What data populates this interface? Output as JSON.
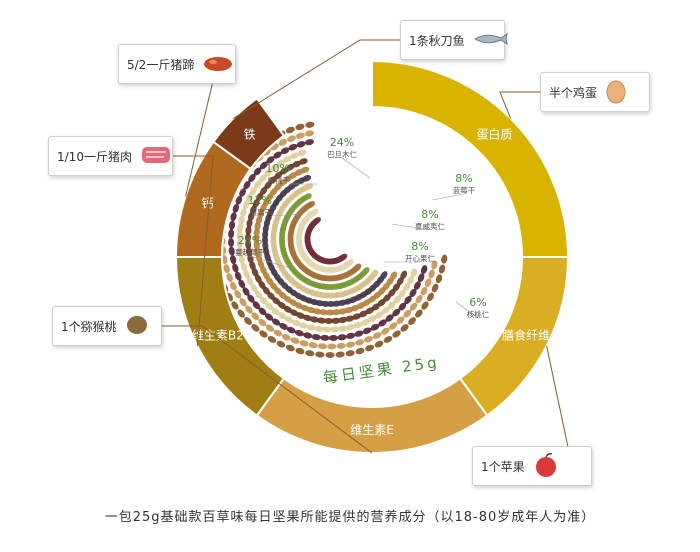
{
  "chart_data": {
    "type": "donut",
    "caption": "一包25g基础款百草味每日坚果所能提供的营养成分（以18-80岁成年人为准）",
    "center_text": "每日坚果 25g",
    "segments": [
      {
        "label": "蛋白质",
        "share": 0.25,
        "color": "#d8b400",
        "callout": "半个鸡蛋",
        "icon": "egg-icon"
      },
      {
        "label": "膳食纤维",
        "share": 0.15,
        "color": "#d9ae22",
        "callout": "1个苹果",
        "icon": "apple-icon"
      },
      {
        "label": "维生素E",
        "share": 0.2,
        "color": "#d49f45",
        "callout": "1个猕猴桃",
        "icon": "kiwi-icon"
      },
      {
        "label": "维生素B2",
        "share": 0.15,
        "color": "#a17e13",
        "callout": "1/10一斤猪肉",
        "icon": "pork-icon"
      },
      {
        "label": "钙",
        "share": 0.1,
        "color": "#b16920",
        "callout": "5/2一斤猪蹄",
        "icon": "pig-trotter-icon"
      },
      {
        "label": "铁",
        "share": 0.05,
        "color": "#7b3a17",
        "callout": "1条秋刀鱼",
        "icon": "fish-icon"
      }
    ],
    "nut_blend": [
      {
        "percent": "24%",
        "name": "巴旦木仁"
      },
      {
        "percent": "10%",
        "name": "樱桃干"
      },
      {
        "percent": "12%",
        "name": "腰果干"
      },
      {
        "percent": "24%",
        "name": "蔓越莓干"
      },
      {
        "percent": "8%",
        "name": "蓝莓干"
      },
      {
        "percent": "8%",
        "name": "夏威夷仁"
      },
      {
        "percent": "8%",
        "name": "开心果仁"
      },
      {
        "percent": "6%",
        "name": "核桃仁"
      }
    ]
  }
}
